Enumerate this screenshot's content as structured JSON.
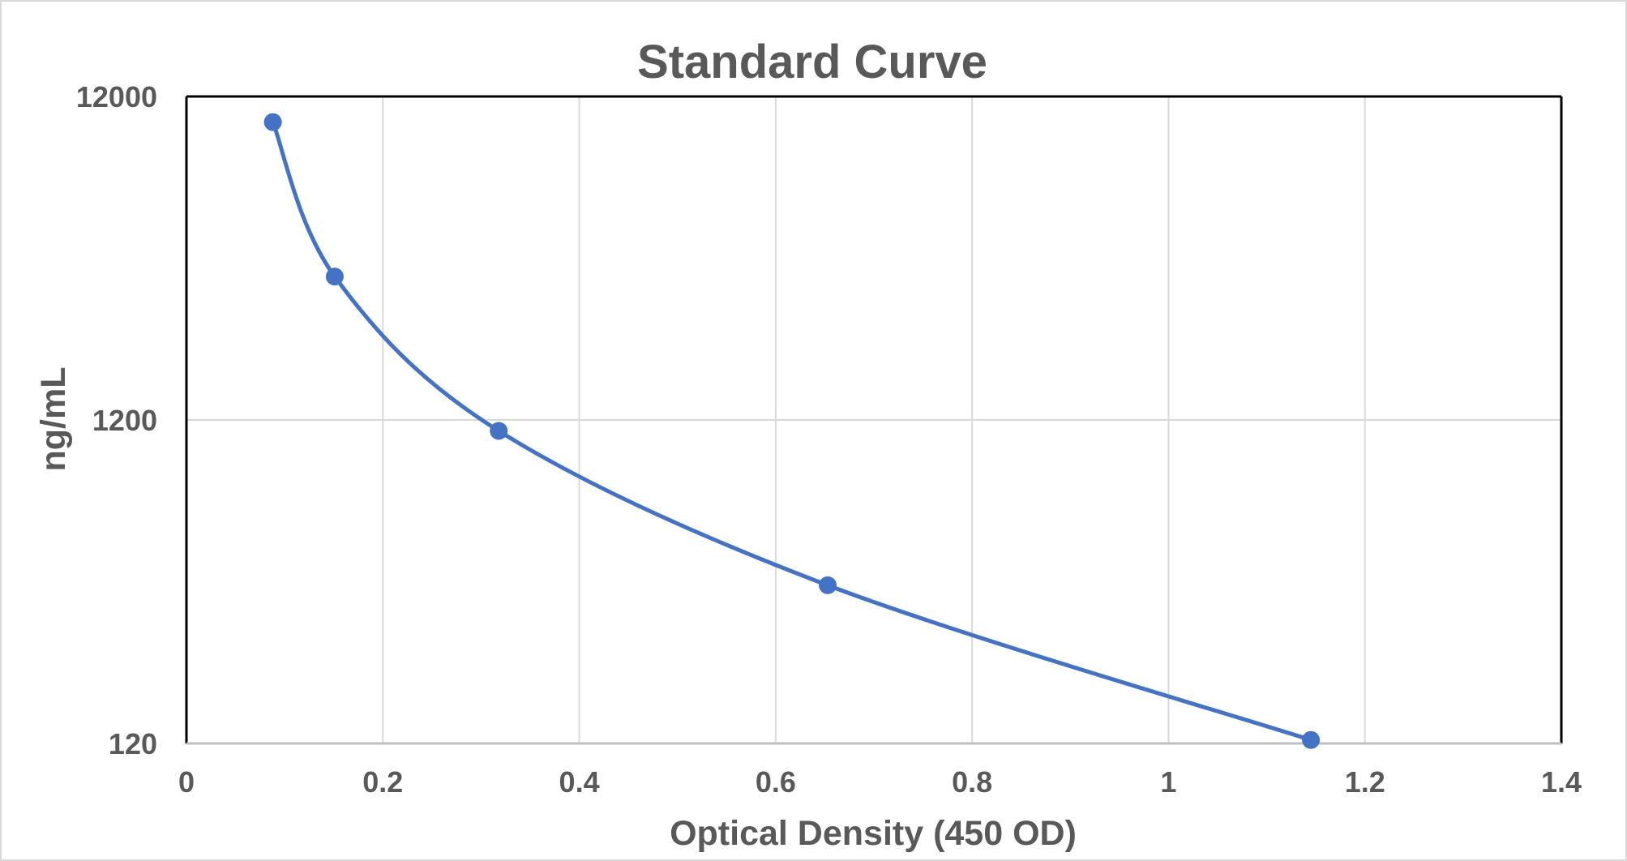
{
  "chart_data": {
    "type": "scatter",
    "title": "Standard Curve",
    "xlabel": "Optical Density (450 OD)",
    "ylabel": "ng/mL",
    "xlim": [
      0,
      1.4
    ],
    "ylim": [
      120,
      12000
    ],
    "y_scale": "log",
    "x_ticks": [
      "0",
      "0.2",
      "0.4",
      "0.6",
      "0.8",
      "1",
      "1.2",
      "1.4"
    ],
    "y_ticks": [
      "120",
      "1200",
      "12000"
    ],
    "grid": true,
    "smooth_line": true,
    "series": [
      {
        "x": [
          0.088,
          0.151,
          0.318,
          0.653,
          1.145
        ],
        "y": [
          10000,
          3330,
          1110,
          370,
          123
        ],
        "color": "#4472C4"
      }
    ]
  }
}
